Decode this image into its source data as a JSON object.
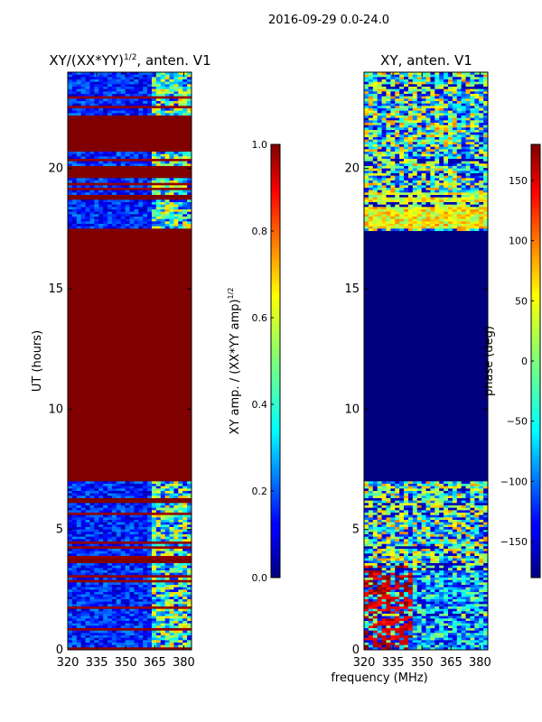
{
  "suptitle": "2016-09-29 0.0-24.0",
  "chart_data": [
    {
      "type": "heatmap",
      "title_main": "XY/(XX*YY)",
      "title_sup": "1/2",
      "title_rest": ", anten. V1",
      "ylabel": "UT (hours)",
      "xlabel": "",
      "xlim": [
        320,
        384
      ],
      "ylim": [
        0,
        24
      ],
      "xticks": [
        "320",
        "335",
        "350",
        "365",
        "380"
      ],
      "xtick_values": [
        320,
        335,
        350,
        365,
        380
      ],
      "yticks": [
        "0",
        "5",
        "10",
        "15",
        "20"
      ],
      "ytick_values": [
        0,
        5,
        10,
        15,
        20
      ],
      "colorbar": {
        "label_main": "XY amp. / (XX*YY amp)",
        "label_sup": "1/2",
        "range": [
          0.0,
          1.0
        ],
        "ticks": [
          "0.0",
          "0.2",
          "0.4",
          "0.6",
          "0.8",
          "1.0"
        ],
        "tick_values": [
          0.0,
          0.2,
          0.4,
          0.6,
          0.8,
          1.0
        ]
      }
    },
    {
      "type": "heatmap",
      "title": "XY, anten. V1",
      "ylabel": "",
      "xlabel": "frequency (MHz)",
      "xlim": [
        320,
        384
      ],
      "ylim": [
        0,
        24
      ],
      "xticks": [
        "320",
        "335",
        "350",
        "365",
        "380"
      ],
      "xtick_values": [
        320,
        335,
        350,
        365,
        380
      ],
      "yticks": [
        "0",
        "5",
        "10",
        "15",
        "20"
      ],
      "ytick_values": [
        0,
        5,
        10,
        15,
        20
      ],
      "colorbar": {
        "label": "phase (deg)",
        "range": [
          -180,
          180
        ],
        "ticks": [
          "−150",
          "−100",
          "−50",
          "0",
          "50",
          "100",
          "150"
        ],
        "tick_values": [
          -150,
          -100,
          -50,
          0,
          50,
          100,
          150
        ]
      }
    }
  ],
  "colors": {
    "jet_dark_red": "#800000",
    "jet_dark_blue": "#00007f",
    "jet_blue": "#0000ff",
    "jet_cyan": "#00ffff",
    "jet_yellow": "#ffff00",
    "jet_red": "#ff0000"
  }
}
